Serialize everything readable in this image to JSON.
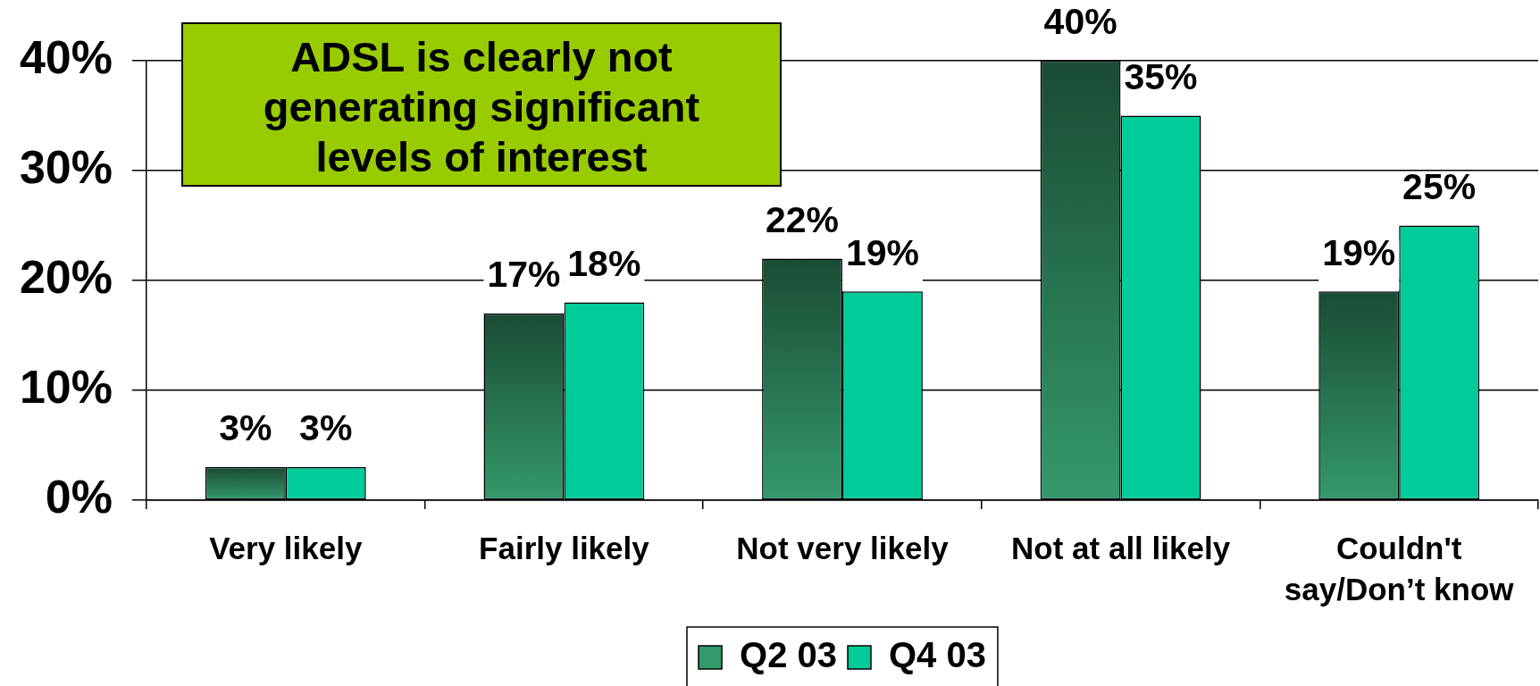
{
  "chart_data": {
    "type": "bar",
    "categories": [
      "Very likely",
      "Fairly likely",
      "Not very likely",
      "Not at all likely",
      "Couldn't say/Don’t know"
    ],
    "series": [
      {
        "name": "Q2 03",
        "color": "#277250",
        "values": [
          3,
          17,
          22,
          40,
          19
        ],
        "value_labels": [
          "3%",
          "17%",
          "22%",
          "40%",
          "19%"
        ]
      },
      {
        "name": "Q4 03",
        "color": "#00cc99",
        "values": [
          3,
          18,
          19,
          35,
          25
        ],
        "value_labels": [
          "3%",
          "18%",
          "19%",
          "35%",
          "25%"
        ]
      }
    ],
    "ylim": [
      0,
      40
    ],
    "yticks": [
      {
        "value": 0,
        "label": "0%"
      },
      {
        "value": 10,
        "label": "10%"
      },
      {
        "value": 20,
        "label": "20%"
      },
      {
        "value": 30,
        "label": "30%"
      },
      {
        "value": 40,
        "label": "40%"
      }
    ],
    "grid": "y",
    "legend": "bottom",
    "annotations": [
      "ADSL is clearly not generating significant levels of interest"
    ]
  }
}
